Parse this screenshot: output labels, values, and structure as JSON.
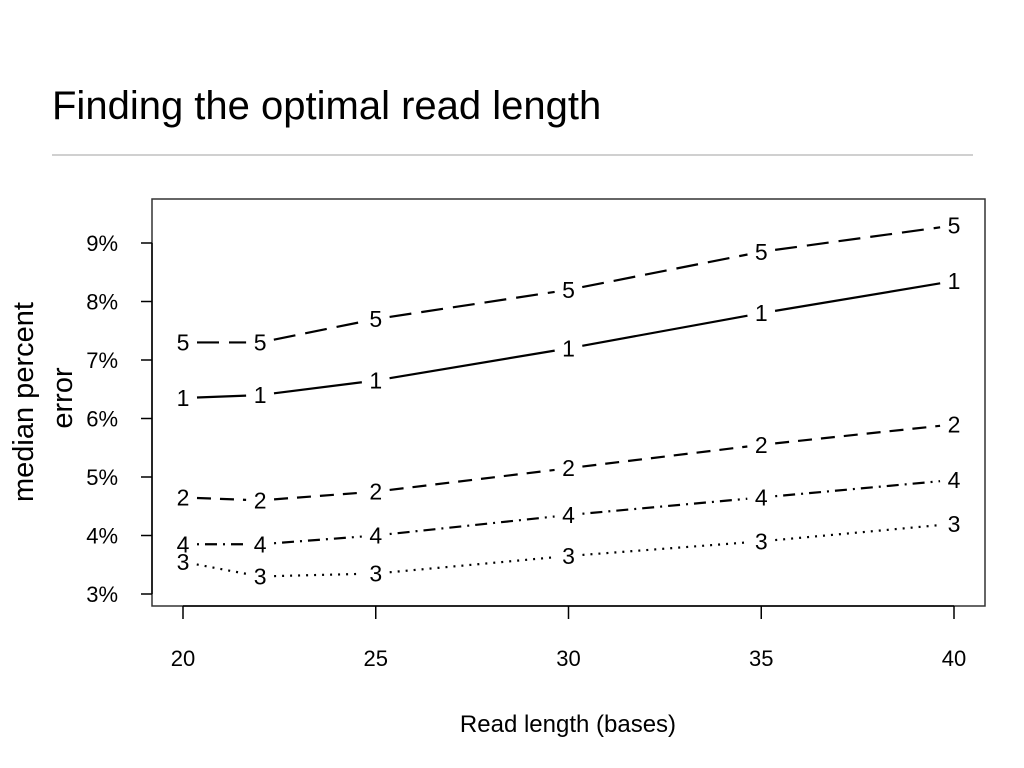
{
  "slide": {
    "title": "Finding the optimal read length"
  },
  "chart_data": {
    "type": "line",
    "title": "",
    "xlabel": "Read length (bases)",
    "ylabel_lines": [
      "median percent",
      "error"
    ],
    "x": [
      20,
      22,
      25,
      30,
      35,
      40
    ],
    "xlim": [
      20,
      40
    ],
    "ylim": [
      3,
      9.5
    ],
    "x_ticks": [
      "20",
      "25",
      "30",
      "35",
      "40"
    ],
    "y_ticks": [
      "3%",
      "4%",
      "5%",
      "6%",
      "7%",
      "8%",
      "9%"
    ],
    "grid": false,
    "legend": "none",
    "series": [
      {
        "name": "5",
        "line_style": "long-dash",
        "values": [
          7.3,
          7.3,
          7.7,
          8.2,
          8.85,
          9.3
        ]
      },
      {
        "name": "1",
        "line_style": "solid",
        "values": [
          6.35,
          6.4,
          6.65,
          7.2,
          7.8,
          8.35
        ]
      },
      {
        "name": "2",
        "line_style": "dashed",
        "values": [
          4.65,
          4.6,
          4.75,
          5.15,
          5.55,
          5.9
        ]
      },
      {
        "name": "4",
        "line_style": "dot-dash",
        "values": [
          3.85,
          3.85,
          4.0,
          4.35,
          4.65,
          4.95
        ]
      },
      {
        "name": "3",
        "line_style": "dotted",
        "values": [
          3.55,
          3.3,
          3.35,
          3.65,
          3.9,
          4.2
        ]
      }
    ],
    "colors": {
      "line": "#000000",
      "frame": "#333333"
    }
  }
}
